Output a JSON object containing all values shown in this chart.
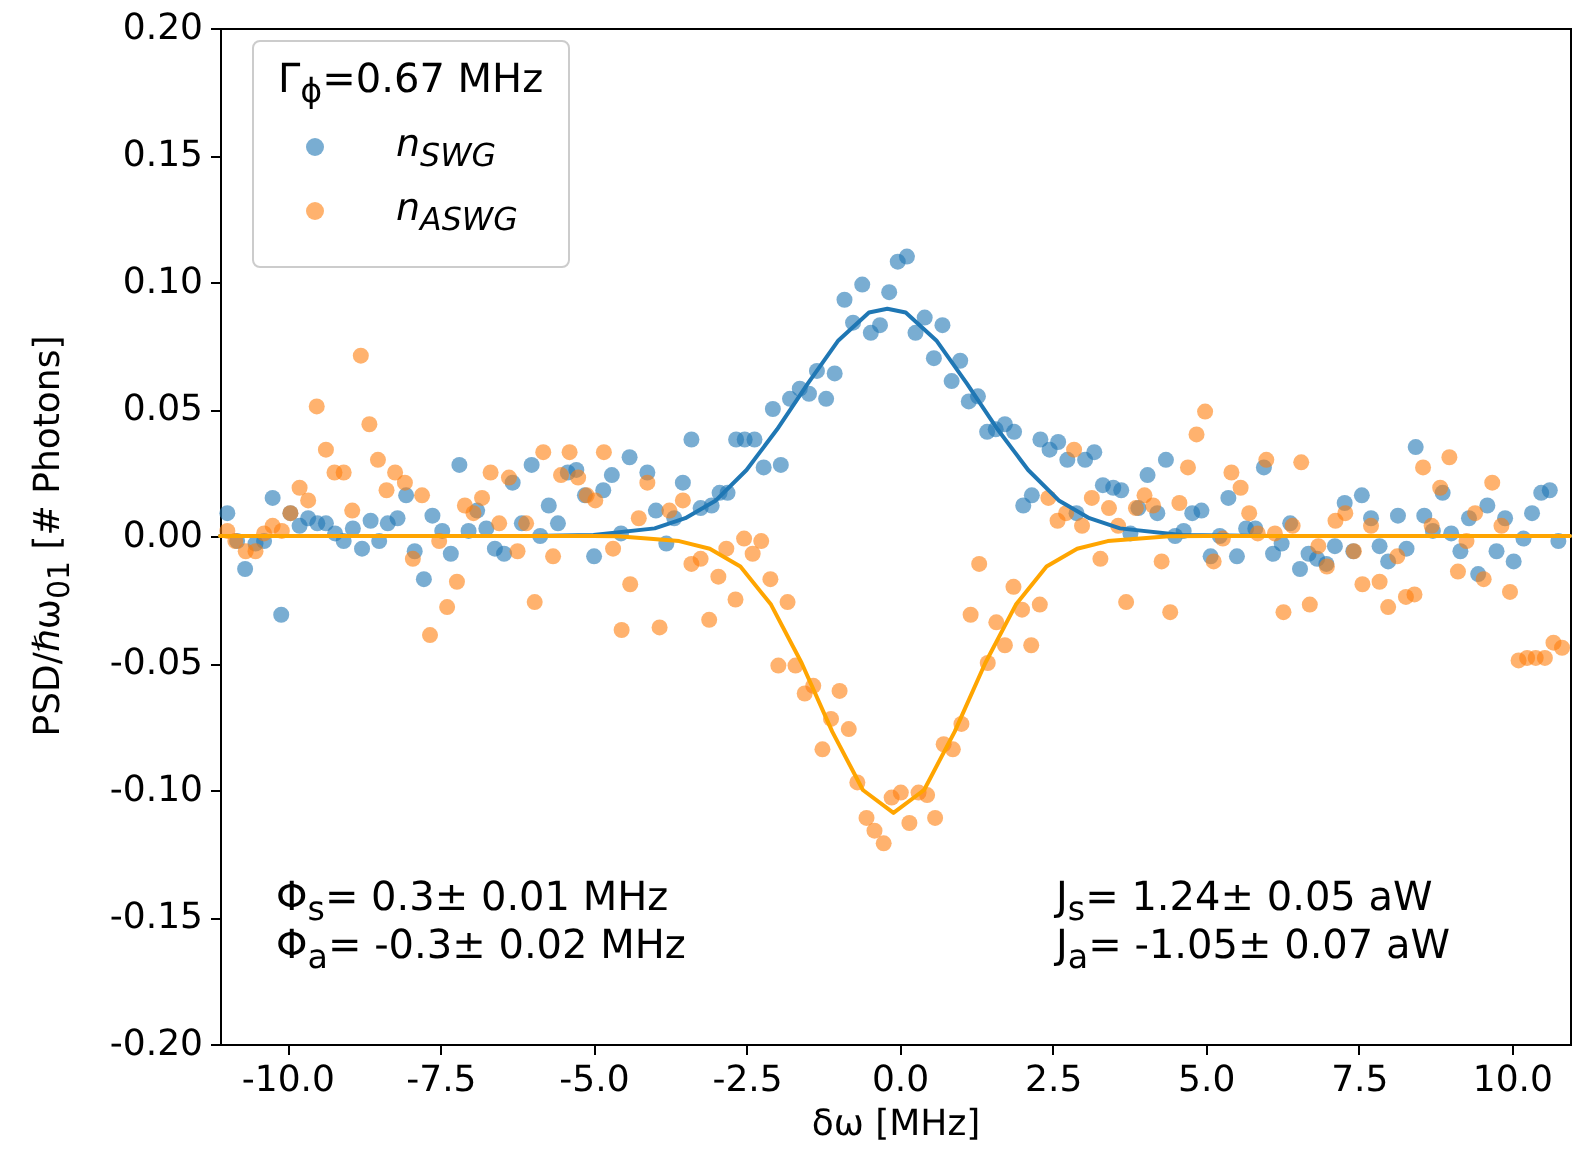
{
  "chart_data": {
    "type": "scatter",
    "xlabel": "δω [MHz]",
    "ylabel": "PSD/ℏω$_{01}$ [# Photons]",
    "legend_title": "Γ$_{ϕ}$=0.67 MHz",
    "legend": "top left",
    "grid": false,
    "xlim": [
      -11.1,
      10.95
    ],
    "ylim": [
      -0.2,
      0.2
    ],
    "xticks": [
      {
        "value": -10,
        "label": "-10.0"
      },
      {
        "value": -7.5,
        "label": "-7.5"
      },
      {
        "value": -5,
        "label": "-5.0"
      },
      {
        "value": -2.5,
        "label": "-2.5"
      },
      {
        "value": 0,
        "label": "0.0"
      },
      {
        "value": 2.5,
        "label": "2.5"
      },
      {
        "value": 5,
        "label": "5.0"
      },
      {
        "value": 7.5,
        "label": "7.5"
      },
      {
        "value": 10,
        "label": "10.0"
      }
    ],
    "yticks": [
      {
        "value": -0.2,
        "label": "-0.20"
      },
      {
        "value": -0.15,
        "label": "-0.15"
      },
      {
        "value": -0.1,
        "label": "-0.10"
      },
      {
        "value": -0.05,
        "label": "-0.05"
      },
      {
        "value": 0,
        "label": "0.00"
      },
      {
        "value": 0.05,
        "label": "0.05"
      },
      {
        "value": 0.1,
        "label": "0.10"
      },
      {
        "value": 0.15,
        "label": "0.15"
      },
      {
        "value": 0.2,
        "label": "0.20"
      }
    ],
    "annotations": [
      "Φ$_{s}$=  0.3± 0.01 MHz",
      "Φ$_{a}$=  -0.3± 0.02 MHz",
      "J$_{s}$=  1.24± 0.05 aW",
      "J$_{a}$=  -1.05± 0.07 aW"
    ],
    "series": [
      {
        "name": "n$_{SWG}$",
        "marker": "circle",
        "color": "#1f77b4",
        "x": [
          -10.98,
          -10.82,
          -10.69,
          -10.52,
          -10.38,
          -10.24,
          -10.1,
          -9.95,
          -9.8,
          -9.66,
          -9.51,
          -9.37,
          -9.22,
          -9.08,
          -8.93,
          -8.78,
          -8.64,
          -8.5,
          -8.36,
          -8.2,
          -8.06,
          -7.92,
          -7.77,
          -7.63,
          -7.47,
          -7.33,
          -7.19,
          -7.04,
          -6.9,
          -6.75,
          -6.61,
          -6.46,
          -6.32,
          -6.17,
          -6.01,
          -5.87,
          -5.73,
          -5.58,
          -5.42,
          -5.28,
          -5.14,
          -4.99,
          -4.84,
          -4.7,
          -4.55,
          -4.41,
          -4.12,
          -3.98,
          -3.81,
          -3.68,
          -3.54,
          -3.4,
          -3.25,
          -3.07,
          -2.94,
          -2.81,
          -2.67,
          -2.53,
          -2.37,
          -2.22,
          -2.07,
          -1.94,
          -1.79,
          -1.63,
          -1.48,
          -1.35,
          -1.2,
          -1.06,
          -0.9,
          -0.76,
          -0.61,
          -0.47,
          -0.32,
          -0.17,
          -0.03,
          0.12,
          0.26,
          0.41,
          0.56,
          0.7,
          0.85,
          0.99,
          1.13,
          1.28,
          1.43,
          1.57,
          1.72,
          1.87,
          2.02,
          2.16,
          2.3,
          2.45,
          2.59,
          2.74,
          2.89,
          3.03,
          3.18,
          3.32,
          3.49,
          3.62,
          3.77,
          3.9,
          4.05,
          4.21,
          4.35,
          4.5,
          4.64,
          4.78,
          4.93,
          5.08,
          5.23,
          5.37,
          5.51,
          5.66,
          5.81,
          5.95,
          6.1,
          6.24,
          6.38,
          6.54,
          6.68,
          6.82,
          6.97,
          7.11,
          7.27,
          7.41,
          7.55,
          7.7,
          7.84,
          7.98,
          8.14,
          8.28,
          8.43,
          8.57,
          8.71,
          8.87,
          9.01,
          9.16,
          9.3,
          9.45,
          9.6,
          9.75,
          9.89,
          10.03,
          10.19,
          10.33,
          10.48,
          10.62,
          10.76
        ],
        "values": [
          0.009,
          -0.002,
          -0.013,
          -0.003,
          -0.002,
          0.015,
          -0.031,
          0.009,
          0.004,
          0.007,
          0.005,
          0.005,
          0.001,
          -0.002,
          0.003,
          -0.005,
          0.006,
          -0.002,
          0.005,
          0.007,
          0.016,
          -0.006,
          -0.017,
          0.008,
          0.002,
          -0.007,
          0.028,
          0.002,
          0.01,
          0.003,
          -0.005,
          -0.007,
          0.021,
          0.005,
          0.028,
          0.0,
          0.012,
          0.005,
          0.025,
          0.026,
          0.016,
          -0.008,
          0.018,
          0.024,
          0.001,
          0.031,
          0.025,
          0.01,
          -0.003,
          0.007,
          0.021,
          0.038,
          0.011,
          0.012,
          0.017,
          0.017,
          0.038,
          0.038,
          0.038,
          0.027,
          0.05,
          0.028,
          0.054,
          0.058,
          0.056,
          0.065,
          0.054,
          0.064,
          0.093,
          0.084,
          0.099,
          0.08,
          0.083,
          0.096,
          0.108,
          0.11,
          0.08,
          0.086,
          0.07,
          0.083,
          0.061,
          0.069,
          0.053,
          0.055,
          0.041,
          0.042,
          0.044,
          0.041,
          0.012,
          0.016,
          0.038,
          0.034,
          0.037,
          0.03,
          0.009,
          0.03,
          0.033,
          0.02,
          0.019,
          0.018,
          0.001,
          0.011,
          0.024,
          0.009,
          0.03,
          0.0,
          0.002,
          0.009,
          0.01,
          -0.008,
          0.0,
          0.015,
          -0.008,
          0.003,
          0.003,
          0.027,
          -0.007,
          -0.003,
          0.005,
          -0.013,
          -0.007,
          -0.009,
          -0.011,
          -0.004,
          0.013,
          -0.006,
          0.016,
          0.007,
          -0.004,
          -0.01,
          0.008,
          -0.005,
          0.035,
          0.008,
          0.002,
          0.017,
          0.001,
          -0.006,
          0.007,
          -0.015,
          0.012,
          -0.006,
          0.007,
          -0.01,
          -0.001,
          0.009,
          0.017,
          0.018,
          -0.002
        ]
      },
      {
        "name": "n$_{ASWG}$",
        "marker": "circle",
        "color": "#ff7f0e",
        "x": [
          -10.98,
          -10.85,
          -10.68,
          -10.52,
          -10.38,
          -10.24,
          -10.09,
          -9.95,
          -9.8,
          -9.66,
          -9.52,
          -9.37,
          -9.23,
          -9.08,
          -8.94,
          -8.8,
          -8.66,
          -8.52,
          -8.38,
          -8.24,
          -8.08,
          -7.95,
          -7.8,
          -7.67,
          -7.52,
          -7.39,
          -7.23,
          -7.1,
          -6.96,
          -6.82,
          -6.68,
          -6.54,
          -6.38,
          -6.24,
          -6.1,
          -5.96,
          -5.82,
          -5.66,
          -5.53,
          -5.39,
          -5.25,
          -5.11,
          -4.97,
          -4.83,
          -4.68,
          -4.54,
          -4.4,
          -4.26,
          -4.12,
          -3.92,
          -3.76,
          -3.54,
          -3.4,
          -3.25,
          -3.11,
          -2.96,
          -2.83,
          -2.68,
          -2.54,
          -2.4,
          -2.26,
          -2.11,
          -1.98,
          -1.83,
          -1.7,
          -1.55,
          -1.41,
          -1.26,
          -1.12,
          -0.98,
          -0.83,
          -0.69,
          -0.54,
          -0.41,
          -0.26,
          -0.13,
          0.02,
          0.16,
          0.31,
          0.45,
          0.58,
          0.72,
          0.87,
          1.01,
          1.16,
          1.3,
          1.44,
          1.58,
          1.72,
          1.86,
          2.0,
          2.15,
          2.29,
          2.43,
          2.58,
          2.72,
          2.85,
          2.98,
          3.14,
          3.28,
          3.42,
          3.57,
          3.7,
          3.86,
          4.0,
          4.14,
          4.28,
          4.42,
          4.57,
          4.71,
          4.85,
          4.99,
          5.13,
          5.28,
          5.42,
          5.57,
          5.71,
          5.85,
          5.99,
          6.13,
          6.27,
          6.42,
          6.56,
          6.7,
          6.84,
          6.98,
          7.12,
          7.28,
          7.42,
          7.56,
          7.7,
          7.84,
          7.98,
          8.13,
          8.27,
          8.41,
          8.55,
          8.69,
          8.83,
          8.98,
          9.12,
          9.26,
          9.4,
          9.54,
          9.68,
          9.83,
          9.97,
          10.11,
          10.25,
          10.39,
          10.54,
          10.68,
          10.82
        ],
        "values": [
          0.002,
          -0.002,
          -0.006,
          -0.006,
          0.001,
          0.004,
          0.002,
          0.009,
          0.019,
          0.014,
          0.051,
          0.034,
          0.025,
          0.025,
          0.01,
          0.071,
          0.044,
          0.03,
          0.018,
          0.025,
          0.021,
          -0.009,
          0.016,
          -0.039,
          -0.002,
          -0.028,
          -0.018,
          0.012,
          0.009,
          0.015,
          0.025,
          0.005,
          0.023,
          -0.006,
          0.005,
          -0.026,
          0.033,
          -0.008,
          0.024,
          0.033,
          0.023,
          0.016,
          0.014,
          0.033,
          -0.005,
          -0.037,
          -0.019,
          0.007,
          0.021,
          -0.036,
          0.01,
          0.014,
          -0.011,
          -0.009,
          -0.033,
          -0.016,
          -0.005,
          -0.025,
          -0.001,
          -0.007,
          -0.002,
          -0.017,
          -0.051,
          -0.026,
          -0.051,
          -0.062,
          -0.059,
          -0.084,
          -0.072,
          -0.061,
          -0.076,
          -0.097,
          -0.111,
          -0.116,
          -0.121,
          -0.103,
          -0.101,
          -0.113,
          -0.101,
          -0.102,
          -0.111,
          -0.082,
          -0.084,
          -0.074,
          -0.031,
          -0.011,
          -0.05,
          -0.034,
          -0.043,
          -0.02,
          -0.029,
          -0.043,
          -0.027,
          0.015,
          0.006,
          0.009,
          0.034,
          0.004,
          0.015,
          -0.009,
          0.011,
          0.004,
          -0.026,
          0.011,
          0.016,
          0.012,
          -0.01,
          -0.03,
          0.013,
          0.027,
          0.04,
          0.049,
          -0.01,
          -0.001,
          0.025,
          0.019,
          0.009,
          0.001,
          0.03,
          0.001,
          -0.03,
          0.004,
          0.029,
          -0.027,
          -0.004,
          -0.012,
          0.006,
          0.009,
          -0.006,
          -0.019,
          0.004,
          -0.018,
          -0.028,
          -0.008,
          -0.024,
          -0.023,
          0.027,
          0.004,
          0.019,
          0.031,
          -0.014,
          -0.002,
          0.009,
          -0.017,
          0.021,
          0.004,
          -0.022,
          -0.049,
          -0.048,
          -0.048,
          -0.048,
          -0.042,
          -0.044
        ]
      },
      {
        "type": "line",
        "line_style": "solid",
        "color": "#1f77b4",
        "x": [
          -11.1,
          -6,
          -5,
          -4,
          -3.5,
          -3,
          -2.5,
          -2,
          -1.5,
          -1,
          -0.5,
          -0.2,
          0.1,
          0.6,
          1.1,
          1.6,
          2.1,
          2.6,
          3.1,
          3.6,
          4.6,
          6,
          10.95
        ],
        "values": [
          0,
          0,
          0.0004,
          0.003,
          0.007,
          0.014,
          0.026,
          0.042,
          0.06,
          0.077,
          0.088,
          0.0895,
          0.088,
          0.077,
          0.06,
          0.042,
          0.026,
          0.014,
          0.007,
          0.003,
          0.0004,
          0,
          0
        ]
      },
      {
        "type": "line",
        "line_style": "solid",
        "color": "#ffa500",
        "x": [
          -11.1,
          -5,
          -4.6,
          -3.6,
          -3.1,
          -2.6,
          -2.1,
          -1.6,
          -1.1,
          -0.6,
          -0.1,
          0.4,
          0.9,
          1.4,
          1.9,
          2.4,
          2.9,
          3.4,
          4.4,
          5,
          10.95
        ],
        "values": [
          0,
          0,
          -0.0001,
          -0.002,
          -0.005,
          -0.012,
          -0.027,
          -0.05,
          -0.077,
          -0.1,
          -0.109,
          -0.1,
          -0.077,
          -0.05,
          -0.027,
          -0.012,
          -0.005,
          -0.002,
          -0.0001,
          0,
          0
        ]
      }
    ]
  }
}
